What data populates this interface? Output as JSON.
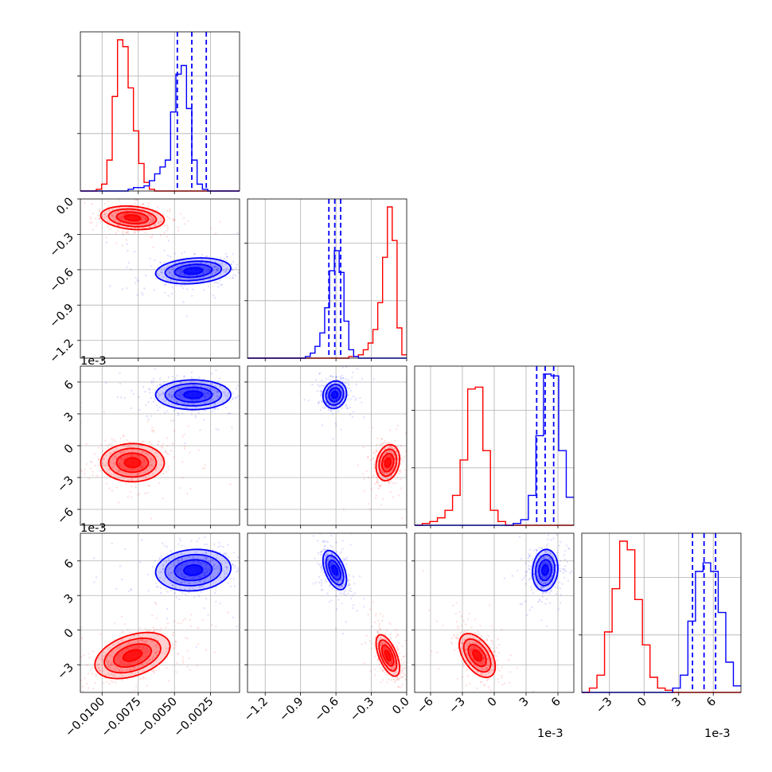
{
  "figure": {
    "offset_labels": {
      "x_axis": "1e-3",
      "y_axis": "1e-3"
    }
  },
  "chart_data": {
    "type": "corner",
    "grid": true,
    "series": [
      {
        "name": "",
        "color": "#ff0000"
      },
      {
        "name": "",
        "color": "#0000ff"
      }
    ],
    "parameters": [
      {
        "range": [
          -0.0115,
          -0.0005
        ],
        "ticks": [
          -0.01,
          -0.0075,
          -0.005,
          -0.0025
        ],
        "tick_labels": [
          "−0.0100",
          "−0.0075",
          "−0.0050",
          "−0.0025"
        ]
      },
      {
        "range": [
          -1.35,
          0.0
        ],
        "ticks": [
          -1.2,
          -0.9,
          -0.6,
          -0.3,
          0.0
        ],
        "tick_labels": [
          "−1.2",
          "−0.9",
          "−0.6",
          "−0.3",
          "0.0"
        ]
      },
      {
        "range": [
          -7.5,
          7.5
        ],
        "ticks": [
          -6,
          -3,
          0,
          3,
          6
        ],
        "tick_labels": [
          "−6",
          "−3",
          "0",
          "3",
          "6"
        ],
        "scale_label": "1e-3"
      },
      {
        "range": [
          -5.4,
          8.4
        ],
        "ticks": [
          -3,
          0,
          3,
          6
        ],
        "tick_labels": [
          "−3",
          "0",
          "3",
          "6"
        ],
        "scale_label": "1e-3"
      }
    ],
    "marginals": [
      {
        "red": [
          0,
          0,
          0,
          1,
          4,
          18,
          55,
          88,
          84,
          60,
          35,
          16,
          5,
          1,
          0,
          0,
          0,
          0,
          0,
          0,
          0,
          0,
          0,
          0,
          0,
          0,
          0,
          0,
          0,
          0
        ],
        "blue": [
          0,
          0,
          0,
          0,
          0,
          0,
          0,
          0,
          0,
          1,
          2,
          2,
          3,
          6,
          10,
          14,
          18,
          46,
          68,
          73,
          48,
          18,
          4,
          1,
          0,
          0,
          0,
          0,
          0,
          0
        ],
        "quantiles_blue": [
          -0.0048,
          -0.0038,
          -0.0028
        ]
      },
      {
        "red": [
          0,
          0,
          0,
          0,
          0,
          0,
          0,
          0,
          0,
          0,
          0,
          0,
          0,
          0,
          0,
          0,
          0,
          0,
          0,
          0,
          0,
          1,
          1,
          2,
          5,
          9,
          17,
          33,
          60,
          90,
          70,
          18,
          2
        ],
        "blue": [
          0,
          0,
          0,
          0,
          0,
          0,
          0,
          0,
          0,
          0,
          0,
          0,
          1,
          3,
          7,
          15,
          30,
          52,
          64,
          51,
          22,
          5,
          1,
          0,
          0,
          0,
          0,
          0,
          0,
          0,
          0,
          0,
          0
        ],
        "quantiles_blue": [
          -0.66,
          -0.61,
          -0.56
        ]
      },
      {
        "red": [
          0,
          1,
          2,
          4,
          8,
          16,
          35,
          73,
          74,
          40,
          8,
          2,
          0,
          0,
          0,
          0,
          0,
          0,
          0,
          0,
          0
        ],
        "blue": [
          0,
          0,
          0,
          0,
          0,
          0,
          0,
          0,
          0,
          0,
          0,
          0,
          0,
          1,
          3,
          16,
          48,
          81,
          80,
          40,
          15
        ],
        "quantiles_blue": [
          4.0,
          4.8,
          5.6
        ]
      },
      {
        "red": [
          0,
          2,
          8,
          28,
          48,
          70,
          66,
          43,
          22,
          7,
          2,
          1,
          0,
          0,
          0,
          0,
          0,
          0,
          0,
          0,
          0
        ],
        "blue": [
          0,
          0,
          0,
          0,
          0,
          0,
          0,
          0,
          0,
          0,
          0,
          0,
          2,
          8,
          33,
          56,
          60,
          56,
          37,
          14,
          3
        ],
        "quantiles_blue": [
          4.2,
          5.2,
          6.2
        ]
      }
    ],
    "joint": [
      {
        "row": 1,
        "col": 0,
        "red": {
          "mx": -0.0079,
          "my": -0.16,
          "sx": 0.0011,
          "sy": 0.05,
          "rho": -0.2
        },
        "blue": {
          "mx": -0.0037,
          "my": -0.61,
          "sx": 0.0013,
          "sy": 0.055,
          "rho": 0.2
        }
      },
      {
        "row": 2,
        "col": 0,
        "red": {
          "mx": -0.0079,
          "my": -1.6,
          "sx": 0.0011,
          "sy": 0.9,
          "rho": 0.0
        },
        "blue": {
          "mx": -0.0037,
          "my": 4.8,
          "sx": 0.0013,
          "sy": 0.7,
          "rho": 0.0
        }
      },
      {
        "row": 2,
        "col": 1,
        "red": {
          "mx": -0.16,
          "my": -1.6,
          "sx": 0.05,
          "sy": 0.85,
          "rho": 0.2
        },
        "blue": {
          "mx": -0.61,
          "my": 4.8,
          "sx": 0.05,
          "sy": 0.65,
          "rho": 0.1
        }
      },
      {
        "row": 2,
        "col": 2,
        "red": null,
        "blue": null
      },
      {
        "row": 3,
        "col": 0,
        "red": {
          "mx": -0.0079,
          "my": -2.2,
          "sx": 0.0013,
          "sy": 1.0,
          "rho": 0.4
        },
        "blue": {
          "mx": -0.0037,
          "my": 5.2,
          "sx": 0.0013,
          "sy": 0.9,
          "rho": 0.1
        }
      },
      {
        "row": 3,
        "col": 1,
        "red": {
          "mx": -0.16,
          "my": -2.2,
          "sx": 0.05,
          "sy": 0.9,
          "rho": -0.6
        },
        "blue": {
          "mx": -0.61,
          "my": 5.2,
          "sx": 0.05,
          "sy": 0.85,
          "rho": -0.5
        }
      },
      {
        "row": 3,
        "col": 2,
        "red": {
          "mx": -1.6,
          "my": -2.2,
          "sx": 0.85,
          "sy": 0.95,
          "rho": -0.5
        },
        "blue": {
          "mx": 4.8,
          "my": 5.2,
          "sx": 0.6,
          "sy": 0.9,
          "rho": 0.1
        }
      }
    ]
  }
}
